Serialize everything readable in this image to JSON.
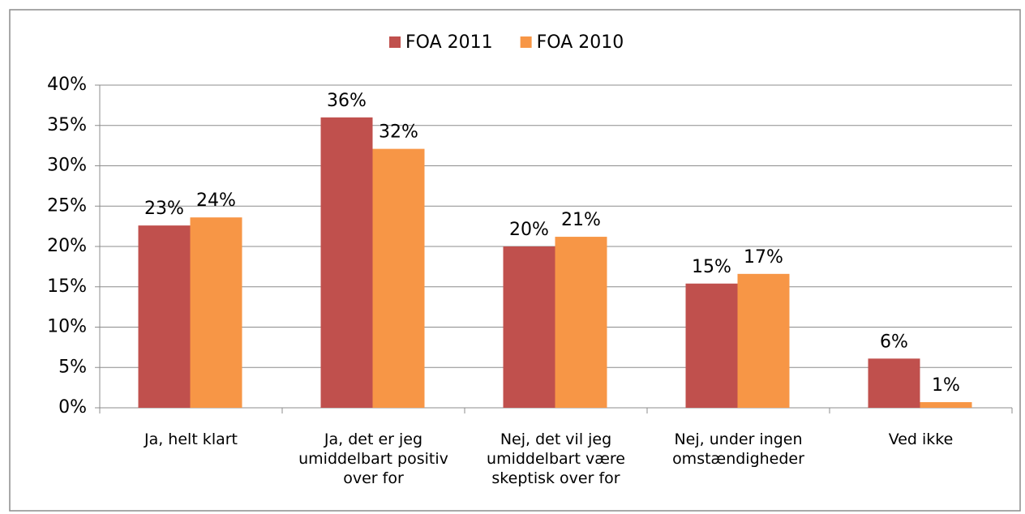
{
  "chart_data": {
    "type": "bar",
    "categories": [
      "Ja, helt klart",
      "Ja, det er jeg umiddelbart positiv over for",
      "Nej, det vil jeg umiddelbart være skeptisk over for",
      "Nej, under ingen omstændigheder",
      "Ved ikke"
    ],
    "series": [
      {
        "name": "FOA 2011",
        "color": "#c0504d",
        "values": [
          22.6,
          36.0,
          20.0,
          15.4,
          6.1
        ],
        "value_labels": [
          "23%",
          "36%",
          "20%",
          "15%",
          "6%"
        ]
      },
      {
        "name": "FOA 2010",
        "color": "#f79646",
        "values": [
          23.6,
          32.1,
          21.2,
          16.6,
          0.7
        ],
        "value_labels": [
          "24%",
          "32%",
          "21%",
          "17%",
          "1%"
        ]
      }
    ],
    "ylim": [
      0,
      40
    ],
    "yticks": [
      {
        "value": 0,
        "label": "0%"
      },
      {
        "value": 5,
        "label": "5%"
      },
      {
        "value": 10,
        "label": "10%"
      },
      {
        "value": 15,
        "label": "15%"
      },
      {
        "value": 20,
        "label": "20%"
      },
      {
        "value": 25,
        "label": "25%"
      },
      {
        "value": 30,
        "label": "30%"
      },
      {
        "value": 35,
        "label": "35%"
      },
      {
        "value": 40,
        "label": "40%"
      }
    ],
    "grid": true,
    "legend": "top"
  }
}
